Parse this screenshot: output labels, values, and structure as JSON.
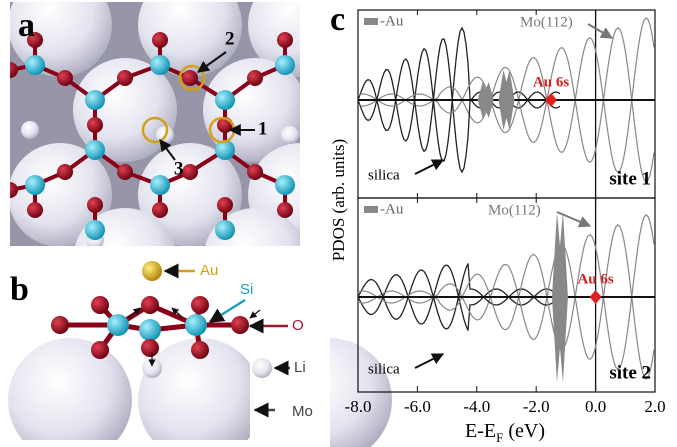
{
  "panels": {
    "a": {
      "label": "a",
      "sites": [
        "2",
        "1",
        "3"
      ]
    },
    "b": {
      "label": "b",
      "atoms": [
        "Au",
        "Si",
        "O",
        "Li",
        "Mo"
      ]
    },
    "c": {
      "label": "c",
      "y_label": "PDOS (arb. units)",
      "x_label": {
        "main": "E-E",
        "subscript": "F",
        "unit": "(eV)"
      },
      "xlim": [
        -8,
        2
      ],
      "xticks": [
        {
          "value": -8,
          "label": "-8.0"
        },
        {
          "value": -6,
          "label": "-6.0"
        },
        {
          "value": -4,
          "label": "-4.0"
        },
        {
          "value": -2,
          "label": "-2.0"
        },
        {
          "value": 0,
          "label": "0.0"
        },
        {
          "value": 2,
          "label": "2.0"
        }
      ],
      "subplots": [
        {
          "legend": "-Au",
          "substrate": "Mo(112)",
          "orbital": "Au 6s",
          "film": "silica",
          "site": "site 1"
        },
        {
          "legend": "-Au",
          "substrate": "Mo(112)",
          "orbital": "Au 6s",
          "film": "silica",
          "site": "site 2"
        }
      ]
    }
  }
}
